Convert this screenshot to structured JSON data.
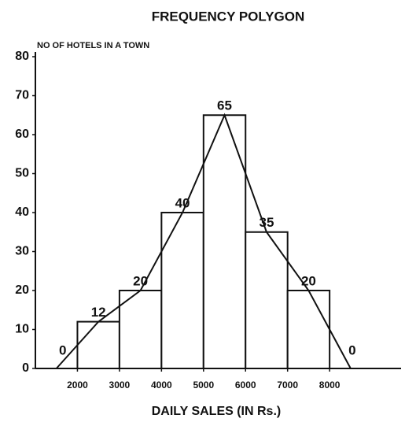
{
  "chart_data": {
    "type": "histogram",
    "title": "FREQUENCY POLYGON",
    "y_label": "NO OF HOTELS IN A TOWN",
    "x_label": "DAILY SALES (IN Rs.)",
    "bins": [
      2000,
      3000,
      4000,
      5000,
      6000,
      7000,
      8000
    ],
    "values": [
      12,
      20,
      40,
      65,
      35,
      20
    ],
    "polygon": {
      "x": [
        1500,
        2500,
        3500,
        4500,
        5500,
        6500,
        7500,
        8500
      ],
      "values": [
        0,
        12,
        20,
        40,
        65,
        35,
        20,
        0
      ]
    },
    "color": "#ffffff",
    "line_color": "#111111",
    "xlim": [
      1000,
      9700
    ],
    "xticks": [
      2000,
      3000,
      4000,
      5000,
      6000,
      7000,
      8000
    ],
    "ylim": [
      0,
      80
    ],
    "yticks": [
      0,
      10,
      20,
      30,
      40,
      50,
      60,
      70,
      80
    ]
  }
}
